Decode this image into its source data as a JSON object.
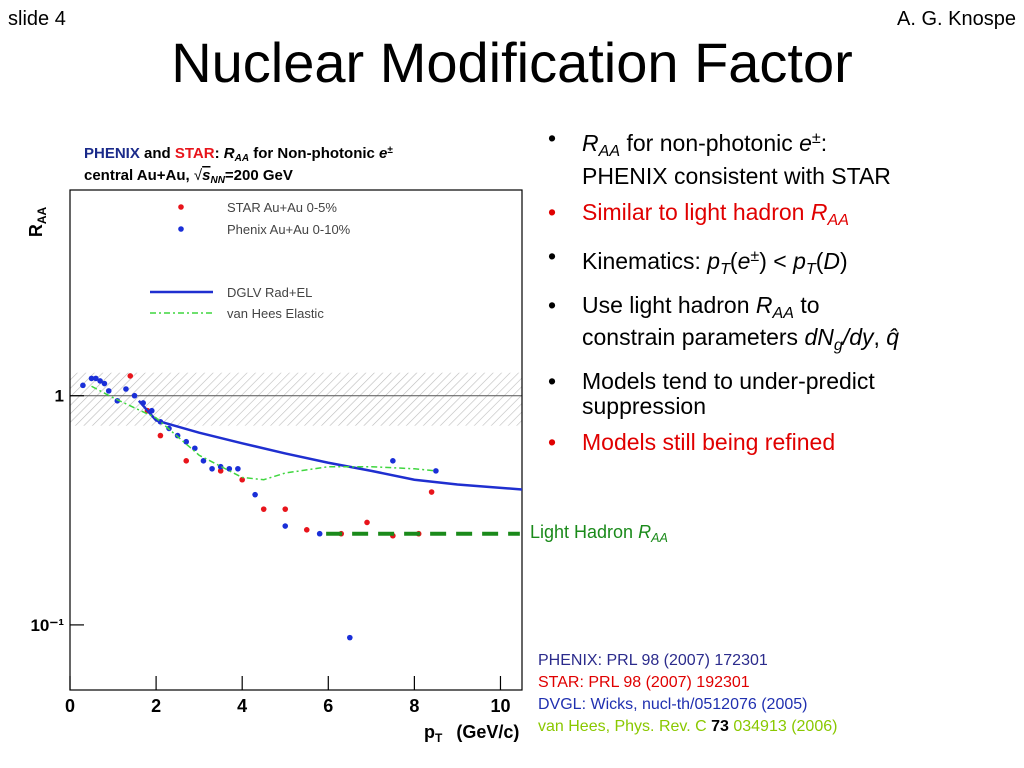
{
  "slide": {
    "number": "slide 4",
    "author": "A. G. Knospe",
    "title": "Nuclear Modification Factor",
    "bullets": [
      [
        "R",
        "AA",
        " for non-photonic ",
        "e",
        "±",
        ":",
        "PHENIX consistent with STAR"
      ],
      [
        "Similar to light hadron ",
        "R",
        "AA"
      ],
      [
        "Kinematics: ",
        "p",
        "T",
        "(",
        "e",
        "±",
        ") < ",
        "p",
        "T",
        "(",
        "D",
        ")"
      ],
      [
        "Use light hadron ",
        "R",
        "AA",
        " to",
        "constrain parameters ",
        "dN",
        "g",
        "/",
        "dy",
        ", ",
        "q̂"
      ],
      [
        "Models tend to under-predict",
        "suppression"
      ],
      [
        "Models still being refined"
      ]
    ],
    "references": [
      [
        "PHENIX: PRL 98 (2007) 172301"
      ],
      [
        "STAR: PRL 98 (2007) 192301"
      ],
      [
        "DVGL: Wicks, nucl-th/0512076 (2005)"
      ],
      [
        "van Hees, Phys. Rev. C ",
        "73",
        " 034913 (2006)"
      ]
    ]
  },
  "chart_data": {
    "type": "scatter",
    "title": [
      [
        "PHENIX",
        " and ",
        "STAR",
        ": ",
        "R",
        "AA",
        " for Non-photonic ",
        "e",
        "±"
      ],
      [
        "central Au+Au, ",
        "√",
        "s",
        "NN",
        "=200 GeV"
      ]
    ],
    "xlabel": [
      "p",
      "T",
      "(GeV/c)"
    ],
    "ylabel": [
      "R",
      "AA"
    ],
    "xlim": [
      0,
      10.5
    ],
    "xticks": [
      0,
      2,
      4,
      6,
      8,
      10
    ],
    "ylim": [
      0.052,
      7.9
    ],
    "yscale": "log",
    "yticks": [
      {
        "value": 0.1,
        "label": "10⁻¹"
      },
      1
    ],
    "reference_line": 1,
    "normalization_band": [
      0.74,
      1.26
    ],
    "series": [
      {
        "name": "STAR Au+Au 0-5%",
        "mode": "markers",
        "color": "#e8141b",
        "x": [
          1.4,
          1.8,
          2.1,
          2.7,
          3.5,
          4.0,
          4.5,
          5.0,
          5.5,
          6.3,
          6.9,
          7.5,
          8.1,
          8.4
        ],
        "values": [
          1.22,
          0.86,
          0.67,
          0.52,
          0.47,
          0.43,
          0.32,
          0.32,
          0.26,
          0.25,
          0.28,
          0.245,
          0.25,
          0.38
        ]
      },
      {
        "name": "Phenix Au+Au  0-10%",
        "mode": "markers",
        "color": "#1a2fd8",
        "x": [
          0.3,
          0.5,
          0.6,
          0.7,
          0.8,
          0.9,
          1.1,
          1.3,
          1.5,
          1.7,
          1.9,
          2.1,
          2.3,
          2.5,
          2.7,
          2.9,
          3.1,
          3.3,
          3.5,
          3.7,
          3.9,
          4.3,
          5.0,
          5.8,
          6.5,
          7.5,
          8.5
        ],
        "values": [
          1.11,
          1.19,
          1.19,
          1.16,
          1.13,
          1.05,
          0.95,
          1.07,
          1.0,
          0.93,
          0.86,
          0.77,
          0.72,
          0.67,
          0.63,
          0.59,
          0.52,
          0.48,
          0.49,
          0.48,
          0.48,
          0.37,
          0.27,
          0.25,
          0.088,
          0.52,
          0.47
        ]
      },
      {
        "name": "DGLV Rad+EL",
        "mode": "line",
        "color": "#1f2fd0",
        "x": [
          1.6,
          2,
          3,
          4,
          5,
          6,
          7,
          8,
          9,
          10.5
        ],
        "values": [
          0.95,
          0.78,
          0.69,
          0.62,
          0.56,
          0.51,
          0.47,
          0.43,
          0.41,
          0.39
        ]
      },
      {
        "name": "van Hees Elastic",
        "mode": "dashdot",
        "color": "#3fd63f",
        "x": [
          0.5,
          1,
          2,
          3,
          4,
          4.5,
          5,
          6,
          7,
          8,
          8.5
        ],
        "values": [
          1.1,
          0.98,
          0.8,
          0.55,
          0.44,
          0.43,
          0.46,
          0.49,
          0.49,
          0.48,
          0.47
        ]
      }
    ],
    "annotation": {
      "label": [
        "Light Hadron ",
        "R",
        "AA"
      ],
      "x": [
        5.95,
        10.45
      ],
      "value": 0.25,
      "color": "#1a8a1a"
    }
  }
}
